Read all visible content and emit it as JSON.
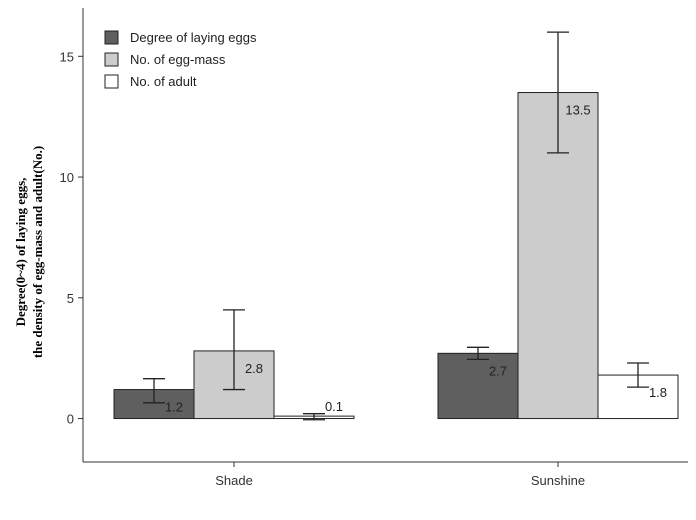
{
  "chart_data": {
    "type": "bar",
    "categories": [
      "Shade",
      "Sunshine"
    ],
    "ylabel_lines": [
      "Degree(0~4) of laying eggs,",
      "the density of  egg-mass and adult(No.)"
    ],
    "ylim": [
      -1.8,
      17
    ],
    "yticks": [
      0,
      5,
      10,
      15
    ],
    "grid": false,
    "legend_position": "top-left",
    "series": [
      {
        "name": "Degree of laying eggs",
        "color": "#5f5f5f",
        "values": [
          1.2,
          2.7
        ],
        "labels": [
          "1.2",
          "2.7"
        ],
        "error_low": [
          0.65,
          2.45
        ],
        "error_high": [
          1.65,
          2.95
        ]
      },
      {
        "name": "No. of egg-mass",
        "color": "#cccccc",
        "values": [
          2.8,
          13.5
        ],
        "labels": [
          "2.8",
          "13.5"
        ],
        "error_low": [
          1.2,
          11.0
        ],
        "error_high": [
          4.5,
          16.0
        ]
      },
      {
        "name": "No. of adult",
        "color": "#ffffff",
        "values": [
          0.1,
          1.8
        ],
        "labels": [
          "0.1",
          "1.8"
        ],
        "error_low": [
          -0.05,
          1.3
        ],
        "error_high": [
          0.2,
          2.3
        ]
      }
    ]
  }
}
